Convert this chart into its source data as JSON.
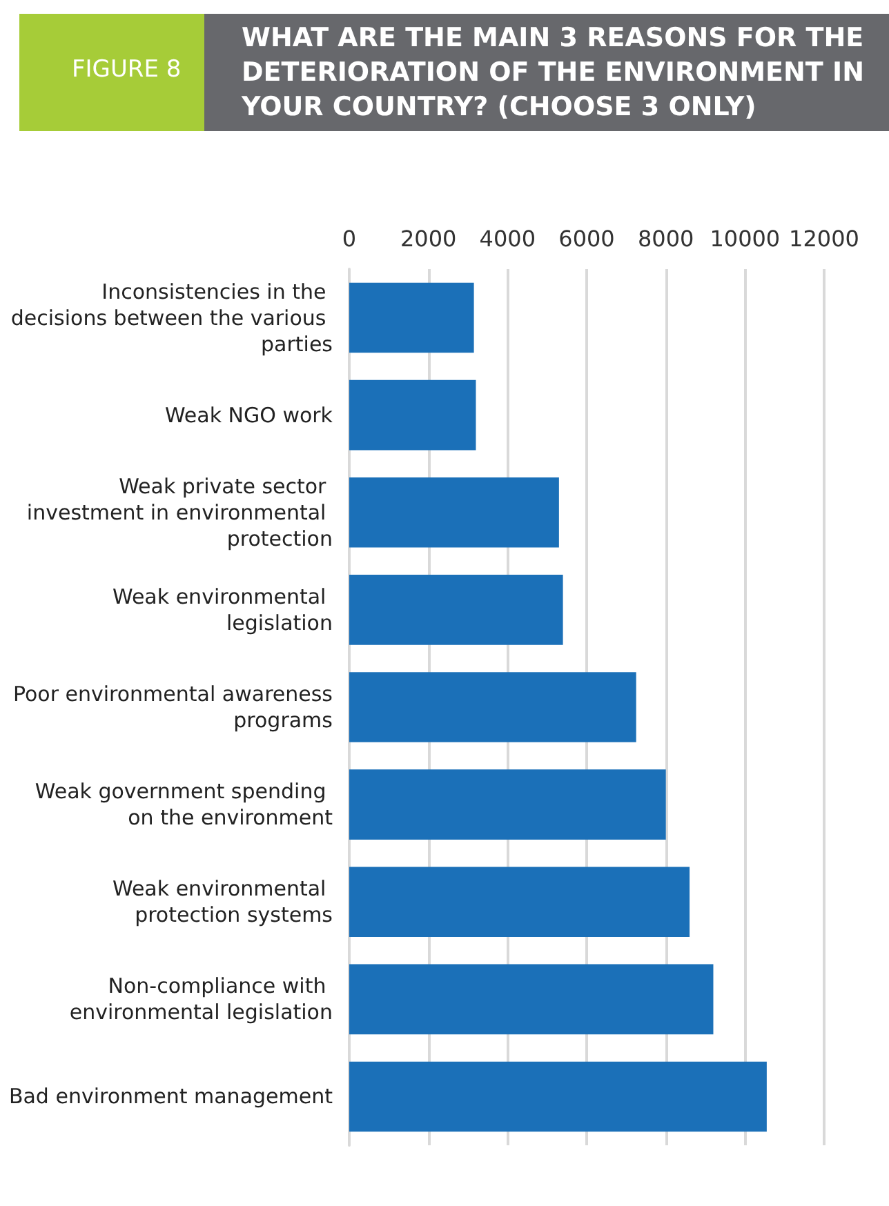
{
  "chart_data": {
    "type": "bar",
    "orientation": "horizontal",
    "title": "WHAT ARE THE MAIN 3 REASONS FOR THE DETERIORATION OF THE ENVIRONMENT IN YOUR COUNTRY? (CHOOSE 3 ONLY)",
    "annotations": [
      "FIGURE 8"
    ],
    "categories": [
      "Inconsistencies in the decisions between the various parties",
      "Weak NGO work",
      "Weak private sector investment in environmental protection",
      "Weak environmental legislation",
      "Poor environmental awareness programs",
      "Weak government spending on the environment",
      "Weak environmental protection systems",
      "Non-compliance with environmental legislation",
      "Bad environment management"
    ],
    "values": [
      3150,
      3200,
      5300,
      5400,
      7250,
      8000,
      8600,
      9200,
      10550
    ],
    "color": "#1b70b8",
    "xlim": [
      0,
      12000
    ],
    "xticks": [
      0,
      2000,
      4000,
      6000,
      8000,
      10000,
      12000
    ],
    "grid": "x"
  }
}
